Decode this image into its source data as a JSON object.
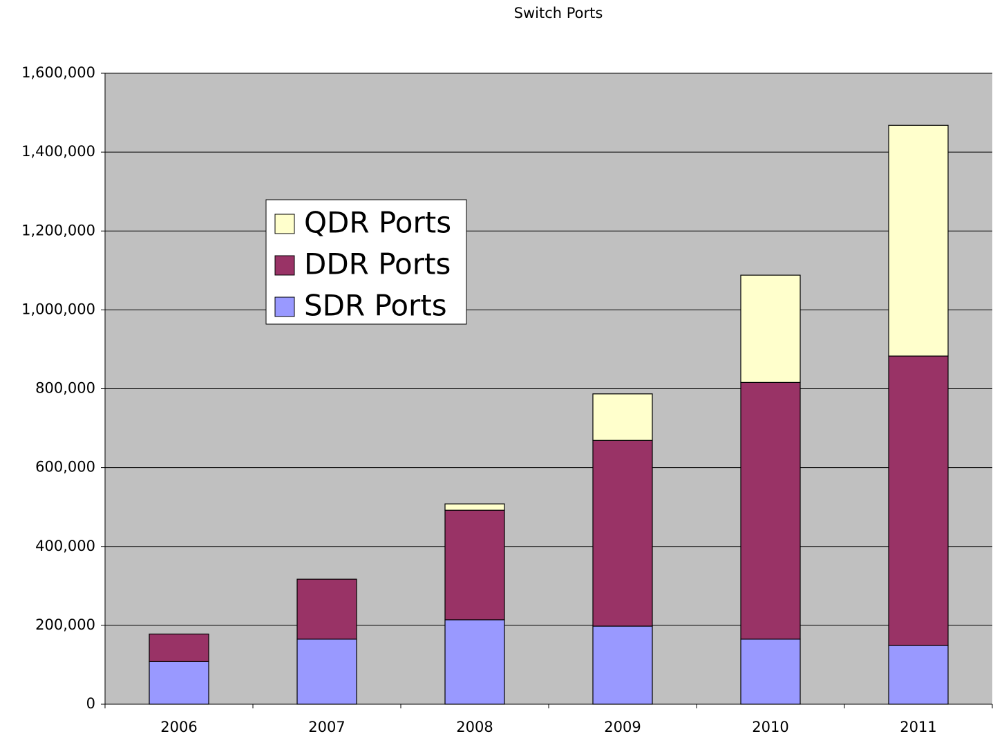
{
  "chart_data": {
    "type": "stacked_bar",
    "title": "Switch Ports",
    "categories": [
      "2006",
      "2007",
      "2008",
      "2009",
      "2010",
      "2011"
    ],
    "series": [
      {
        "name": "SDR Ports",
        "color": "#9999ff",
        "values": [
          108000,
          165000,
          214000,
          198000,
          165000,
          149000
        ]
      },
      {
        "name": "DDR Ports",
        "color": "#993366",
        "values": [
          70000,
          152000,
          278000,
          471000,
          651000,
          734000
        ]
      },
      {
        "name": "QDR Ports",
        "color": "#ffffcc",
        "values": [
          0,
          0,
          16000,
          118000,
          272000,
          585000
        ]
      }
    ],
    "ylim": [
      0,
      1600000
    ],
    "yticks": [
      0,
      {
        "value": 200000,
        "label": "200,000"
      },
      {
        "value": 400000,
        "label": "400,000"
      },
      {
        "value": 600000,
        "label": "600,000"
      },
      {
        "value": 800000,
        "label": "800,000"
      },
      {
        "value": 1000000,
        "label": "1,000,000"
      },
      {
        "value": 1200000,
        "label": "1,200,000"
      },
      {
        "value": 1400000,
        "label": "1,400,000"
      },
      {
        "value": 1600000,
        "label": "1,600,000"
      }
    ],
    "grid": true,
    "background": "#c0c0c0"
  }
}
